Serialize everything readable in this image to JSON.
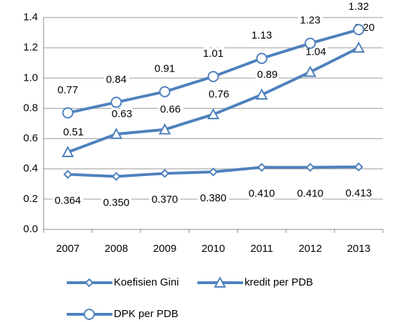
{
  "chart_data": {
    "type": "line",
    "categories": [
      "2007",
      "2008",
      "2009",
      "2010",
      "2011",
      "2012",
      "2013"
    ],
    "series": [
      {
        "name": "Koefisien Gini",
        "color": "#4f81bd",
        "marker": "diamond",
        "values": [
          0.364,
          0.35,
          0.37,
          0.38,
          0.41,
          0.41,
          0.413
        ],
        "value_labels": [
          "0.364",
          "0.350",
          "0.370",
          "0.380",
          "0.410",
          "0.410",
          "0.413"
        ]
      },
      {
        "name": "kredit per PDB",
        "color": "#4f81bd",
        "marker": "triangle",
        "values": [
          0.51,
          0.63,
          0.66,
          0.76,
          0.89,
          1.04,
          1.2
        ],
        "value_labels": [
          "0.51",
          "0.63",
          "0.66",
          "0.76",
          "0.89",
          "1.04",
          "1.20"
        ]
      },
      {
        "name": "DPK per PDB",
        "color": "#4f81bd",
        "marker": "circle",
        "values": [
          0.77,
          0.84,
          0.91,
          1.01,
          1.13,
          1.23,
          1.32
        ]
      }
    ],
    "ylim": [
      0,
      1.4
    ],
    "yticks": [
      {
        "value": 0,
        "label": "0.0"
      },
      0.2,
      0.4,
      0.6,
      0.8,
      {
        "value": 1,
        "label": "1.0"
      },
      1.2,
      1.4
    ],
    "grid": true,
    "legend": "bottom"
  }
}
